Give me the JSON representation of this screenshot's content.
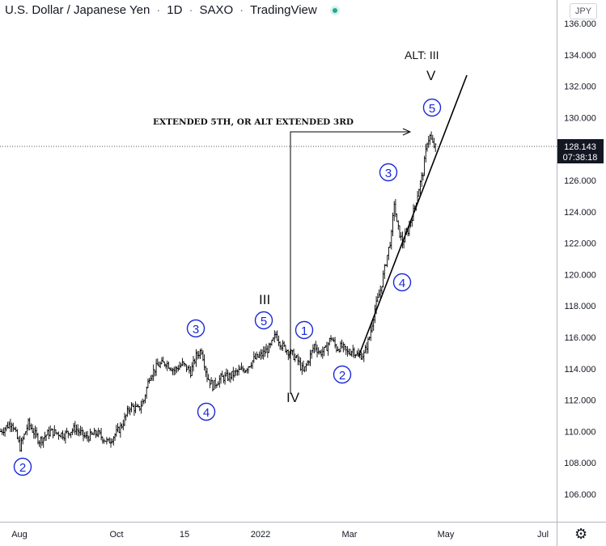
{
  "header": {
    "symbol": "U.S. Dollar / Japanese Yen",
    "interval": "1D",
    "exchange": "SAXO",
    "platform": "TradingView",
    "separator": "·"
  },
  "currency_button": "JPY",
  "price_tag": {
    "price": "128.143",
    "countdown": "07:38:18"
  },
  "chart_data": {
    "type": "ohlc",
    "title": "U.S. Dollar / Japanese Yen · 1D · SAXO · TradingView",
    "xlabel": "",
    "ylabel": "",
    "ylim": [
      104.8,
      136.8
    ],
    "y_ticks": [
      "106.000",
      "108.000",
      "110.000",
      "112.000",
      "114.000",
      "116.000",
      "118.000",
      "120.000",
      "122.000",
      "124.000",
      "126.000",
      "128.000",
      "130.000",
      "132.000",
      "134.000",
      "136.000"
    ],
    "x_tick_labels": [
      "Aug",
      "Oct",
      "15",
      "2022",
      "Mar",
      "May",
      "Jul"
    ],
    "last_price": 128.143,
    "grid": false,
    "colors": {
      "bars": "#000000",
      "wave_labels": "#1a28d6",
      "axis_text": "#131722",
      "dotted_line": "#555555"
    },
    "annotations": {
      "arrow_text": "EXTENDED 5TH, OR ALT EXTENDED 3RD",
      "alt_label": "ALT: III",
      "roman": [
        "III",
        "IV",
        "V"
      ],
      "circled_waves": [
        "2",
        "3",
        "4",
        "5",
        "1",
        "2",
        "3",
        "4",
        "5"
      ]
    },
    "waypoints": [
      [
        0,
        110.0
      ],
      [
        8,
        110.6
      ],
      [
        14,
        109.0
      ],
      [
        20,
        110.5
      ],
      [
        28,
        109.4
      ],
      [
        36,
        110.0
      ],
      [
        46,
        109.8
      ],
      [
        54,
        110.2
      ],
      [
        62,
        109.6
      ],
      [
        70,
        109.9
      ],
      [
        78,
        109.3
      ],
      [
        84,
        109.9
      ],
      [
        88,
        110.4
      ],
      [
        94,
        111.6
      ],
      [
        100,
        111.4
      ],
      [
        104,
        112.0
      ],
      [
        108,
        113.5
      ],
      [
        114,
        114.2
      ],
      [
        120,
        114.4
      ],
      [
        126,
        113.9
      ],
      [
        132,
        114.3
      ],
      [
        138,
        113.8
      ],
      [
        142,
        114.8
      ],
      [
        146,
        115.2
      ],
      [
        150,
        113.5
      ],
      [
        154,
        112.9
      ],
      [
        160,
        113.4
      ],
      [
        166,
        113.5
      ],
      [
        172,
        113.8
      ],
      [
        178,
        114.0
      ],
      [
        184,
        114.6
      ],
      [
        190,
        114.9
      ],
      [
        196,
        115.4
      ],
      [
        200,
        116.2
      ],
      [
        204,
        115.5
      ],
      [
        208,
        115.2
      ],
      [
        212,
        114.9
      ],
      [
        216,
        114.5
      ],
      [
        220,
        113.8
      ],
      [
        224,
        114.6
      ],
      [
        228,
        115.5
      ],
      [
        232,
        115.0
      ],
      [
        236,
        115.2
      ],
      [
        240,
        116.0
      ],
      [
        244,
        115.3
      ],
      [
        248,
        115.4
      ],
      [
        252,
        115.0
      ],
      [
        256,
        115.2
      ],
      [
        260,
        114.8
      ],
      [
        264,
        114.9
      ],
      [
        268,
        116.0
      ],
      [
        272,
        117.8
      ],
      [
        276,
        119.0
      ],
      [
        280,
        120.8
      ],
      [
        284,
        122.5
      ],
      [
        286,
        124.6
      ],
      [
        288,
        123.2
      ],
      [
        292,
        122.0
      ],
      [
        296,
        122.8
      ],
      [
        300,
        124.0
      ],
      [
        304,
        125.5
      ],
      [
        307,
        126.5
      ],
      [
        310,
        128.5
      ],
      [
        312,
        128.8
      ],
      [
        314,
        128.3
      ],
      [
        316,
        128.1
      ]
    ]
  }
}
